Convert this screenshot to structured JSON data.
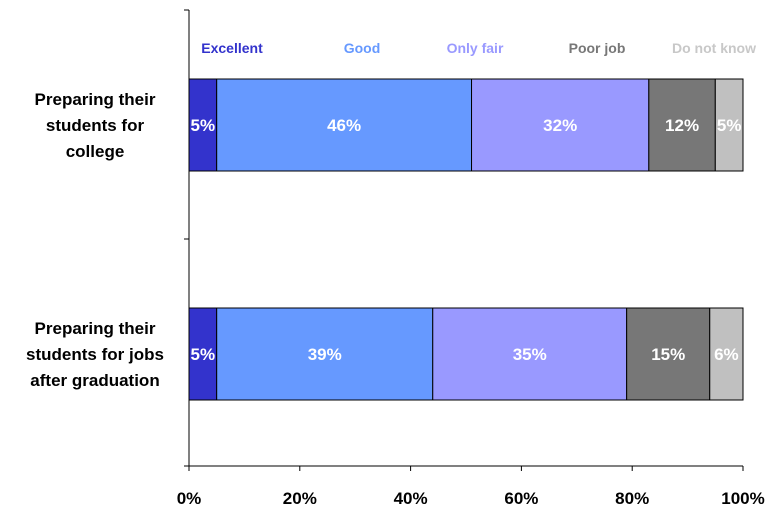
{
  "chart_data": {
    "type": "bar",
    "orientation": "horizontal",
    "stacked": true,
    "categories": [
      [
        "Preparing their",
        "students for",
        "college"
      ],
      [
        "Preparing their",
        "students for jobs",
        "after graduation"
      ]
    ],
    "series": [
      {
        "name": "Excellent",
        "color": "#3333CC",
        "legend_color": "#3333CC",
        "values": [
          5,
          5
        ],
        "labels": [
          "5%",
          "5%"
        ]
      },
      {
        "name": "Good",
        "color": "#6699FF",
        "legend_color": "#6699FF",
        "values": [
          46,
          39
        ],
        "labels": [
          "46%",
          "39%"
        ]
      },
      {
        "name": "Only fair",
        "color": "#9999FF",
        "legend_color": "#9999FF",
        "values": [
          32,
          35
        ],
        "labels": [
          "32%",
          "35%"
        ]
      },
      {
        "name": "Poor job",
        "color": "#777777",
        "legend_color": "#777777",
        "values": [
          12,
          15
        ],
        "labels": [
          "12%",
          "15%"
        ]
      },
      {
        "name": "Do not know",
        "color": "#C0C0C0",
        "legend_color": "#C8C8C8",
        "values": [
          5,
          6
        ],
        "labels": [
          "5%",
          "6%"
        ]
      }
    ],
    "x_ticks": [
      "0%",
      "20%",
      "40%",
      "60%",
      "80%",
      "100%"
    ],
    "xlim": [
      0,
      100
    ],
    "grid": false,
    "legend_position": "top"
  }
}
